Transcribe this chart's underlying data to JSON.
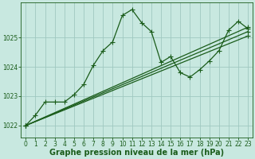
{
  "xlabel": "Graphe pression niveau de la mer (hPa)",
  "xlim": [
    -0.5,
    23.5
  ],
  "ylim": [
    1021.6,
    1026.2
  ],
  "yticks": [
    1022,
    1023,
    1024,
    1025
  ],
  "xticks": [
    0,
    1,
    2,
    3,
    4,
    5,
    6,
    7,
    8,
    9,
    10,
    11,
    12,
    13,
    14,
    15,
    16,
    17,
    18,
    19,
    20,
    21,
    22,
    23
  ],
  "background_color": "#c8e8e0",
  "grid_color": "#a0c8c0",
  "line_color": "#1a5c1a",
  "wavy_x": [
    0,
    1,
    2,
    3,
    4,
    5,
    6,
    7,
    8,
    9,
    10,
    11,
    12,
    13,
    14,
    15,
    16,
    17,
    18,
    19,
    20,
    21,
    22,
    23
  ],
  "wavy_y": [
    1022.0,
    1022.35,
    1022.8,
    1022.8,
    1022.8,
    1023.05,
    1023.4,
    1024.05,
    1024.55,
    1024.85,
    1025.75,
    1025.95,
    1025.5,
    1025.2,
    1024.15,
    1024.35,
    1023.8,
    1023.65,
    1023.9,
    1024.2,
    1024.55,
    1025.25,
    1025.55,
    1025.3
  ],
  "straight_lines": [
    {
      "x": [
        0,
        23
      ],
      "y": [
        1022.0,
        1025.05
      ]
    },
    {
      "x": [
        0,
        23
      ],
      "y": [
        1022.0,
        1025.2
      ]
    },
    {
      "x": [
        0,
        23
      ],
      "y": [
        1022.0,
        1025.35
      ]
    }
  ],
  "marker": "+",
  "marker_size": 4,
  "line_width": 0.9,
  "tick_fontsize": 5.5,
  "label_fontsize": 7.0,
  "tick_color": "#1a5c1a",
  "label_color": "#1a5c1a"
}
